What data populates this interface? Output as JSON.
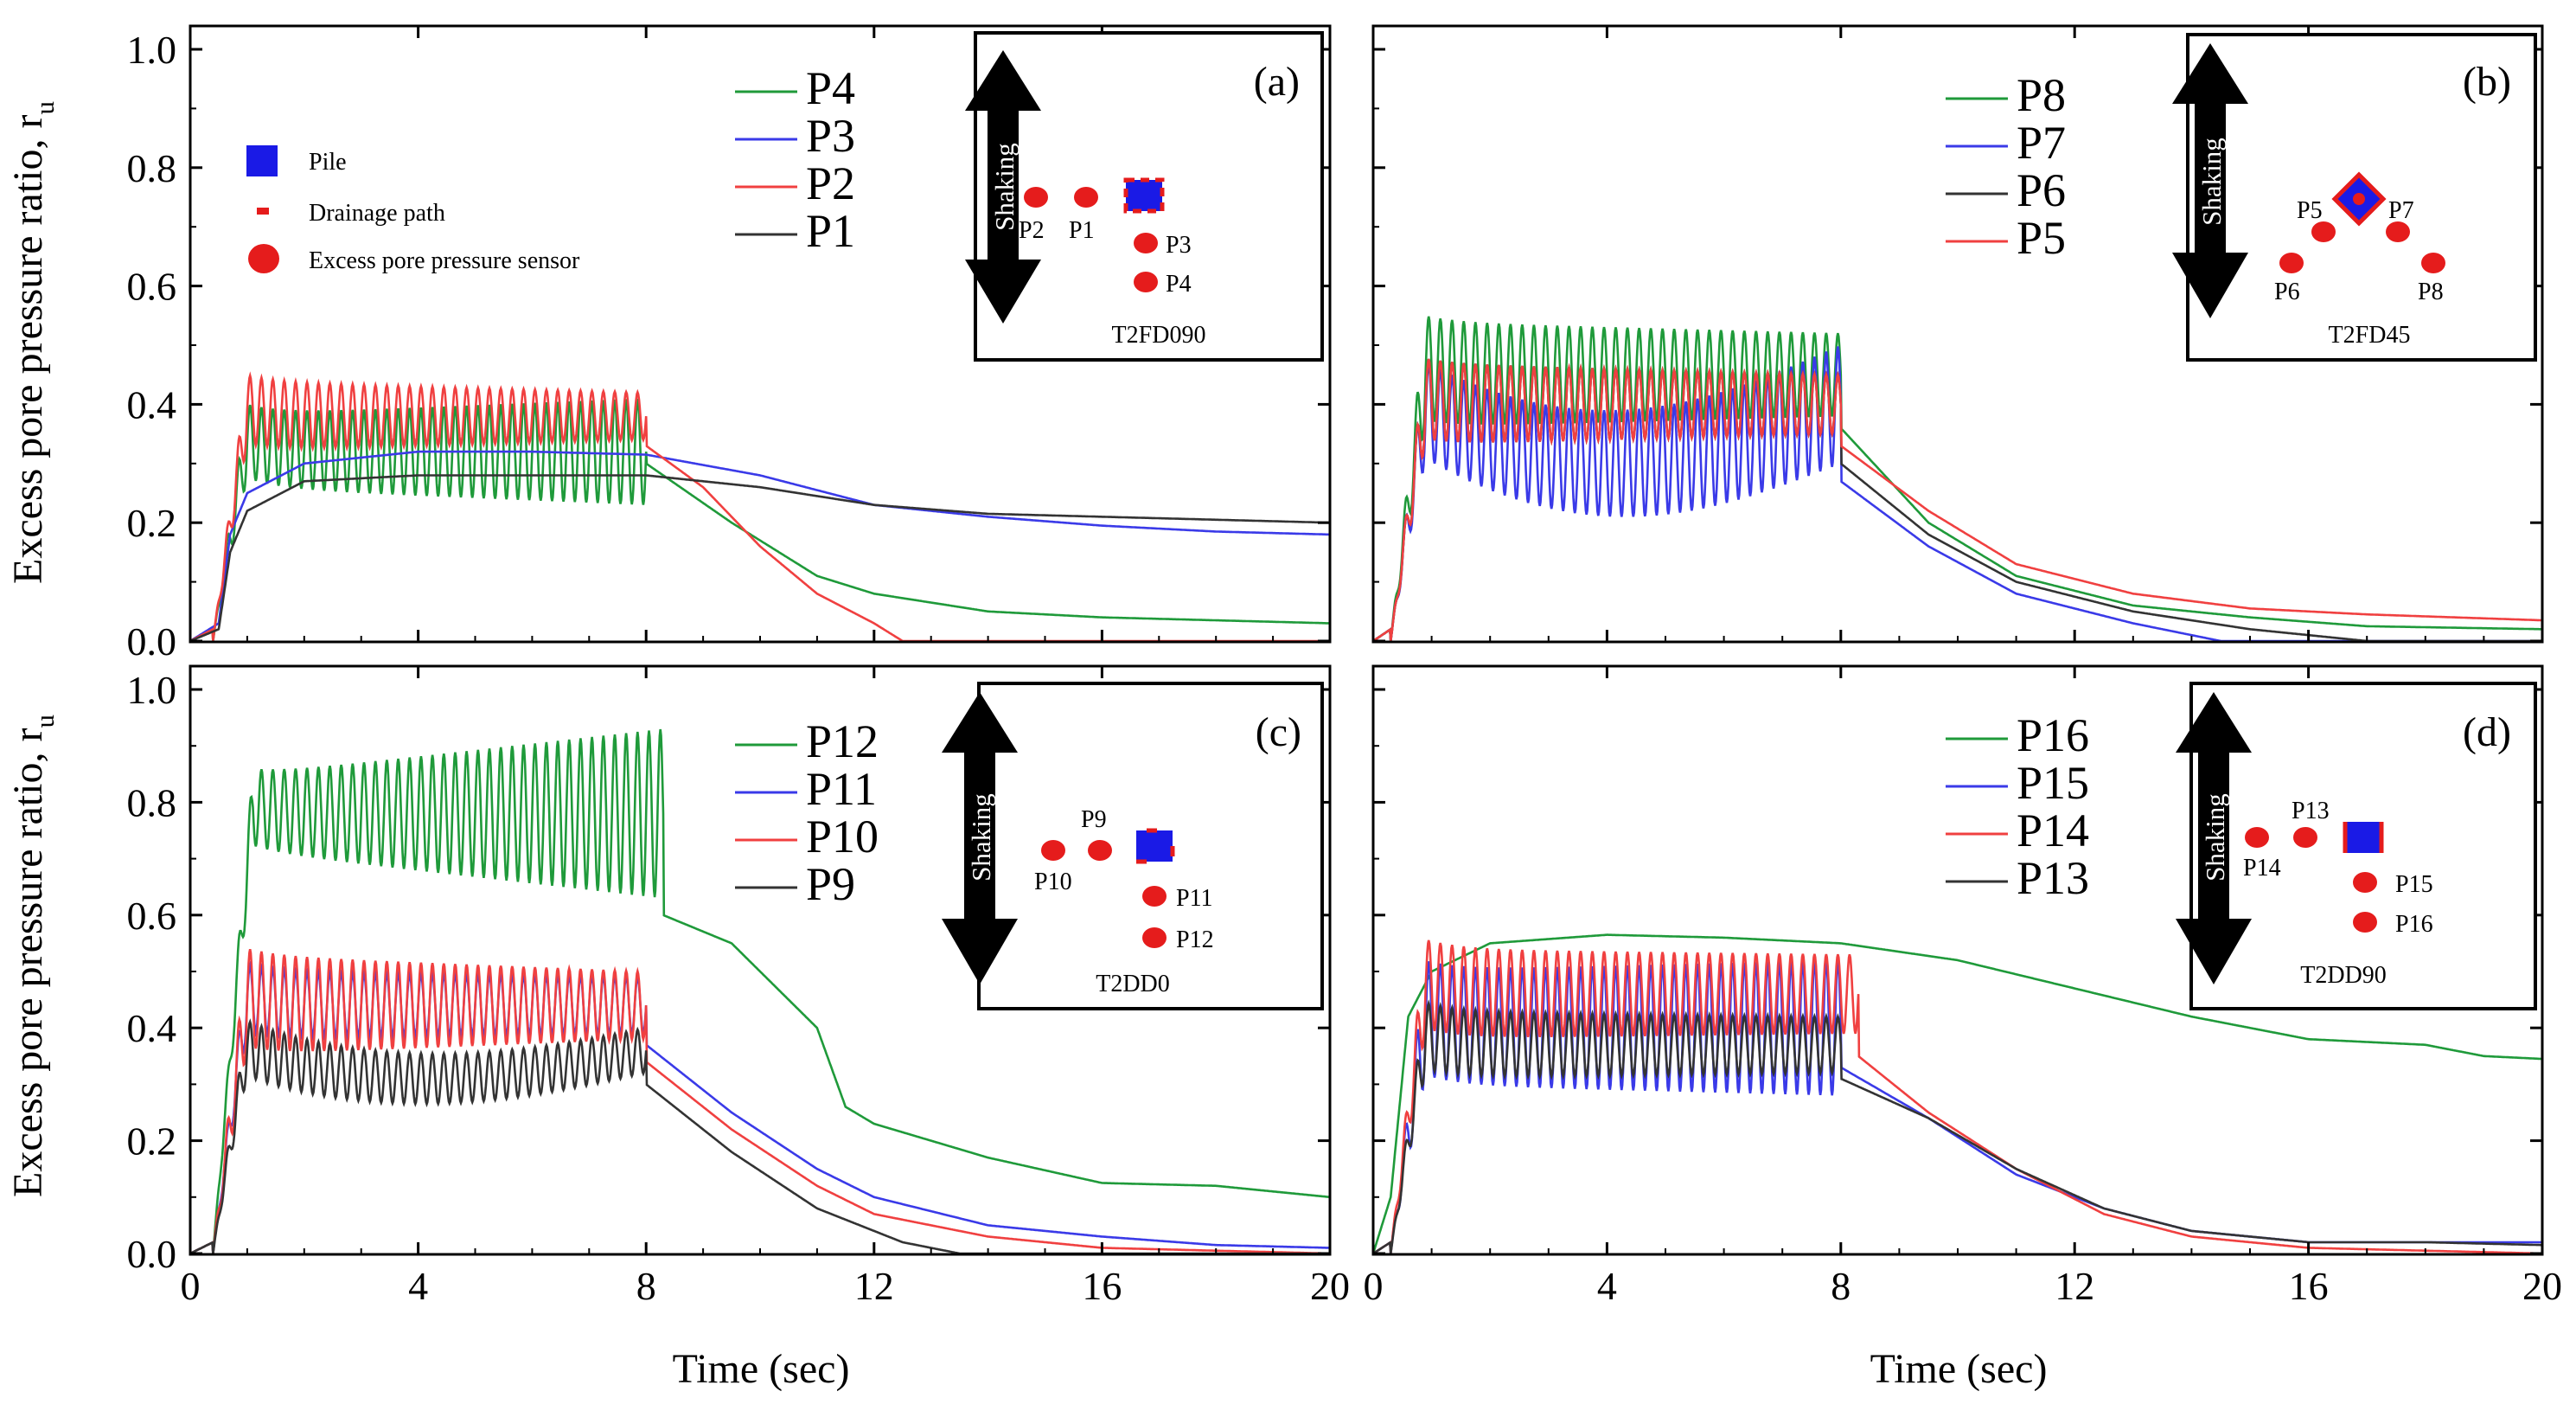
{
  "colors": {
    "green": "#1f9a3a",
    "blue": "#3a3ae8",
    "red": "#f04040",
    "black": "#333333",
    "pile": "#1a1ae6",
    "sensor": "#e51c1c",
    "axis": "#000000"
  },
  "xlabel": "Time (sec)",
  "ylabel": "Excess pore pressure ratio, r",
  "ylabel_sub": "u",
  "xticks": [
    "0",
    "4",
    "8",
    "12",
    "16",
    "20"
  ],
  "yticks": [
    "0.0",
    "0.2",
    "0.4",
    "0.6",
    "0.8",
    "1.0"
  ],
  "chart_data": [
    {
      "type": "line",
      "panel": "(a)",
      "test": "T2FD090",
      "title": "",
      "xlim": [
        0,
        20
      ],
      "ylim": [
        0,
        1
      ],
      "grid": false,
      "xlabel": "",
      "ylabel": "Excess pore pressure ratio, ru",
      "legend_position": "top-right",
      "series": [
        {
          "name": "P4",
          "color": "green",
          "dyn": {
            "t0": 0.4,
            "t1": 8.0,
            "mean": 0.32,
            "amp": 0.06,
            "ampEnd": 0.09,
            "peak": 0.4
          },
          "tail": [
            [
              8.0,
              0.3
            ],
            [
              9.5,
              0.2
            ],
            [
              11,
              0.11
            ],
            [
              12,
              0.08
            ],
            [
              14,
              0.05
            ],
            [
              16,
              0.04
            ],
            [
              18,
              0.035
            ],
            [
              20,
              0.03
            ]
          ]
        },
        {
          "name": "P3",
          "color": "blue",
          "smooth": [
            [
              0,
              0
            ],
            [
              0.5,
              0.03
            ],
            [
              0.7,
              0.18
            ],
            [
              1.0,
              0.25
            ],
            [
              2,
              0.3
            ],
            [
              4,
              0.32
            ],
            [
              6,
              0.32
            ],
            [
              8,
              0.315
            ],
            [
              10,
              0.28
            ],
            [
              12,
              0.23
            ],
            [
              14,
              0.21
            ],
            [
              16,
              0.195
            ],
            [
              18,
              0.185
            ],
            [
              20,
              0.18
            ]
          ]
        },
        {
          "name": "P2",
          "color": "red",
          "dyn": {
            "t0": 0.4,
            "t1": 8.0,
            "mean": 0.38,
            "amp": 0.06,
            "ampEnd": 0.04,
            "peak": 0.43
          },
          "tail": [
            [
              8.0,
              0.33
            ],
            [
              9,
              0.26
            ],
            [
              10,
              0.16
            ],
            [
              11,
              0.08
            ],
            [
              12,
              0.03
            ],
            [
              12.5,
              0.0
            ],
            [
              20,
              0.0
            ]
          ]
        },
        {
          "name": "P1",
          "color": "black",
          "smooth": [
            [
              0,
              0
            ],
            [
              0.5,
              0.02
            ],
            [
              0.7,
              0.15
            ],
            [
              1.0,
              0.22
            ],
            [
              2,
              0.27
            ],
            [
              4,
              0.28
            ],
            [
              6,
              0.28
            ],
            [
              8,
              0.28
            ],
            [
              10,
              0.26
            ],
            [
              12,
              0.23
            ],
            [
              14,
              0.215
            ],
            [
              16,
              0.21
            ],
            [
              18,
              0.205
            ],
            [
              20,
              0.2
            ]
          ]
        }
      ]
    },
    {
      "type": "line",
      "panel": "(b)",
      "test": "T2FD45",
      "title": "",
      "xlim": [
        0,
        20
      ],
      "ylim": [
        0,
        1
      ],
      "grid": false,
      "xlabel": "",
      "ylabel": "",
      "legend_position": "top-right",
      "series": [
        {
          "name": "P8",
          "color": "green",
          "dyn": {
            "t0": 0.3,
            "t1": 8.0,
            "mean": 0.45,
            "amp": 0.09,
            "ampEnd": 0.07,
            "peak": 0.5
          },
          "tail": [
            [
              8.0,
              0.36
            ],
            [
              9.5,
              0.2
            ],
            [
              11,
              0.11
            ],
            [
              13,
              0.06
            ],
            [
              15,
              0.04
            ],
            [
              17,
              0.025
            ],
            [
              20,
              0.02
            ]
          ]
        },
        {
          "name": "P7",
          "color": "blue",
          "dyn": {
            "t0": 0.3,
            "t1": 8.0,
            "mean": 0.4,
            "amp": 0.08,
            "ampEnd": 0.1,
            "peak": 0.44,
            "sag": 0.1
          },
          "tail": [
            [
              8.0,
              0.27
            ],
            [
              9.5,
              0.16
            ],
            [
              11,
              0.08
            ],
            [
              13,
              0.03
            ],
            [
              14.5,
              0.0
            ],
            [
              20,
              0.0
            ]
          ]
        },
        {
          "name": "P6",
          "color": "black",
          "dyn": {
            "t0": 0.3,
            "t1": 8.0,
            "mean": 0.4,
            "amp": 0.07,
            "ampEnd": 0.05,
            "peak": 0.44
          },
          "tail": [
            [
              8.0,
              0.3
            ],
            [
              9.5,
              0.18
            ],
            [
              11,
              0.1
            ],
            [
              13,
              0.05
            ],
            [
              15,
              0.02
            ],
            [
              17,
              0.0
            ],
            [
              20,
              0.0
            ]
          ]
        },
        {
          "name": "P5",
          "color": "red",
          "dyn": {
            "t0": 0.3,
            "t1": 8.0,
            "mean": 0.4,
            "amp": 0.07,
            "ampEnd": 0.05,
            "peak": 0.44
          },
          "tail": [
            [
              8.0,
              0.33
            ],
            [
              9.5,
              0.22
            ],
            [
              11,
              0.13
            ],
            [
              13,
              0.08
            ],
            [
              15,
              0.055
            ],
            [
              17,
              0.045
            ],
            [
              20,
              0.035
            ]
          ]
        }
      ]
    },
    {
      "type": "line",
      "panel": "(c)",
      "test": "T2DD0",
      "title": "",
      "xlim": [
        0,
        20
      ],
      "ylim": [
        0,
        1
      ],
      "grid": false,
      "xlabel": "Time (sec)",
      "ylabel": "Excess pore pressure ratio, ru",
      "legend_position": "top-right",
      "series": [
        {
          "name": "P12",
          "color": "green",
          "dyn": {
            "t0": 0.4,
            "t1": 8.3,
            "mean": 0.78,
            "amp": 0.06,
            "ampEnd": 0.15,
            "peak": 0.84,
            "ramp": 0.7
          },
          "tail": [
            [
              8.3,
              0.6
            ],
            [
              9.5,
              0.55
            ],
            [
              11,
              0.4
            ],
            [
              11.5,
              0.26
            ],
            [
              12,
              0.23
            ],
            [
              14,
              0.17
            ],
            [
              16,
              0.125
            ],
            [
              18,
              0.12
            ],
            [
              20,
              0.1
            ]
          ]
        },
        {
          "name": "P11",
          "color": "blue",
          "dyn": {
            "t0": 0.4,
            "t1": 8.0,
            "mean": 0.44,
            "amp": 0.06,
            "ampEnd": 0.05,
            "peak": 0.5
          },
          "tail": [
            [
              8.0,
              0.37
            ],
            [
              9.5,
              0.25
            ],
            [
              11,
              0.15
            ],
            [
              12,
              0.1
            ],
            [
              14,
              0.05
            ],
            [
              16,
              0.03
            ],
            [
              18,
              0.015
            ],
            [
              20,
              0.01
            ]
          ]
        },
        {
          "name": "P10",
          "color": "red",
          "dyn": {
            "t0": 0.4,
            "t1": 8.0,
            "mean": 0.44,
            "amp": 0.09,
            "ampEnd": 0.06,
            "peak": 0.5
          },
          "tail": [
            [
              8.0,
              0.34
            ],
            [
              9.5,
              0.22
            ],
            [
              11,
              0.12
            ],
            [
              12,
              0.07
            ],
            [
              14,
              0.03
            ],
            [
              16,
              0.01
            ],
            [
              20,
              0.0
            ]
          ]
        },
        {
          "name": "P9",
          "color": "black",
          "dyn": {
            "t0": 0.4,
            "t1": 8.0,
            "mean": 0.36,
            "amp": 0.05,
            "ampEnd": 0.04,
            "peak": 0.42,
            "sag": 0.05
          },
          "tail": [
            [
              8.0,
              0.3
            ],
            [
              9.5,
              0.18
            ],
            [
              11,
              0.08
            ],
            [
              12.5,
              0.02
            ],
            [
              13.5,
              0.0
            ],
            [
              20,
              0.0
            ]
          ]
        }
      ]
    },
    {
      "type": "line",
      "panel": "(d)",
      "test": "T2DD90",
      "title": "",
      "xlim": [
        0,
        20
      ],
      "ylim": [
        0,
        1
      ],
      "grid": false,
      "xlabel": "Time (sec)",
      "ylabel": "",
      "legend_position": "top-right",
      "series": [
        {
          "name": "P16",
          "color": "green",
          "smooth": [
            [
              0,
              0
            ],
            [
              0.3,
              0.1
            ],
            [
              0.6,
              0.42
            ],
            [
              1,
              0.5
            ],
            [
              2,
              0.55
            ],
            [
              4,
              0.565
            ],
            [
              6,
              0.56
            ],
            [
              8,
              0.55
            ],
            [
              10,
              0.52
            ],
            [
              12,
              0.47
            ],
            [
              14,
              0.42
            ],
            [
              16,
              0.38
            ],
            [
              18,
              0.37
            ],
            [
              19,
              0.35
            ],
            [
              20,
              0.345
            ]
          ]
        },
        {
          "name": "P15",
          "color": "blue",
          "dyn": {
            "t0": 0.3,
            "t1": 8.0,
            "mean": 0.4,
            "amp": 0.1,
            "ampEnd": 0.12,
            "peak": 0.48
          },
          "tail": [
            [
              8.0,
              0.33
            ],
            [
              9.5,
              0.24
            ],
            [
              11,
              0.14
            ],
            [
              12.5,
              0.08
            ],
            [
              14,
              0.04
            ],
            [
              16,
              0.02
            ],
            [
              18,
              0.02
            ],
            [
              20,
              0.02
            ]
          ]
        },
        {
          "name": "P14",
          "color": "red",
          "dyn": {
            "t0": 0.3,
            "t1": 8.3,
            "mean": 0.46,
            "amp": 0.08,
            "ampEnd": 0.07,
            "peak": 0.54
          },
          "tail": [
            [
              8.3,
              0.35
            ],
            [
              9.5,
              0.25
            ],
            [
              11,
              0.15
            ],
            [
              12.5,
              0.07
            ],
            [
              14,
              0.03
            ],
            [
              16,
              0.01
            ],
            [
              20,
              0.0
            ]
          ]
        },
        {
          "name": "P13",
          "color": "black",
          "dyn": {
            "t0": 0.3,
            "t1": 8.0,
            "mean": 0.37,
            "amp": 0.06,
            "ampEnd": 0.05,
            "peak": 0.44
          },
          "tail": [
            [
              8.0,
              0.31
            ],
            [
              9.5,
              0.24
            ],
            [
              11,
              0.15
            ],
            [
              12.5,
              0.08
            ],
            [
              14,
              0.04
            ],
            [
              16,
              0.02
            ],
            [
              18,
              0.02
            ],
            [
              20,
              0.015
            ]
          ]
        }
      ]
    }
  ],
  "insets": [
    {
      "label": "(a)",
      "test": "T2FD090",
      "shaking": "Shaking",
      "legend": {
        "pile": "Pile",
        "drain": "Drainage path",
        "sensor": "Excess pore pressure sensor"
      },
      "sensors": [
        {
          "name": "P2"
        },
        {
          "name": "P1"
        },
        {
          "name": "P3"
        },
        {
          "name": "P4"
        }
      ]
    },
    {
      "label": "(b)",
      "test": "T2FD45",
      "shaking": "Shaking",
      "sensors": [
        {
          "name": "P5"
        },
        {
          "name": "P7"
        },
        {
          "name": "P6"
        },
        {
          "name": "P8"
        }
      ]
    },
    {
      "label": "(c)",
      "test": "T2DD0",
      "shaking": "Shaking",
      "sensors": [
        {
          "name": "P9"
        },
        {
          "name": "P10"
        },
        {
          "name": "P11"
        },
        {
          "name": "P12"
        }
      ]
    },
    {
      "label": "(d)",
      "test": "T2DD90",
      "shaking": "Shaking",
      "sensors": [
        {
          "name": "P13"
        },
        {
          "name": "P14"
        },
        {
          "name": "P15"
        },
        {
          "name": "P16"
        }
      ]
    }
  ]
}
